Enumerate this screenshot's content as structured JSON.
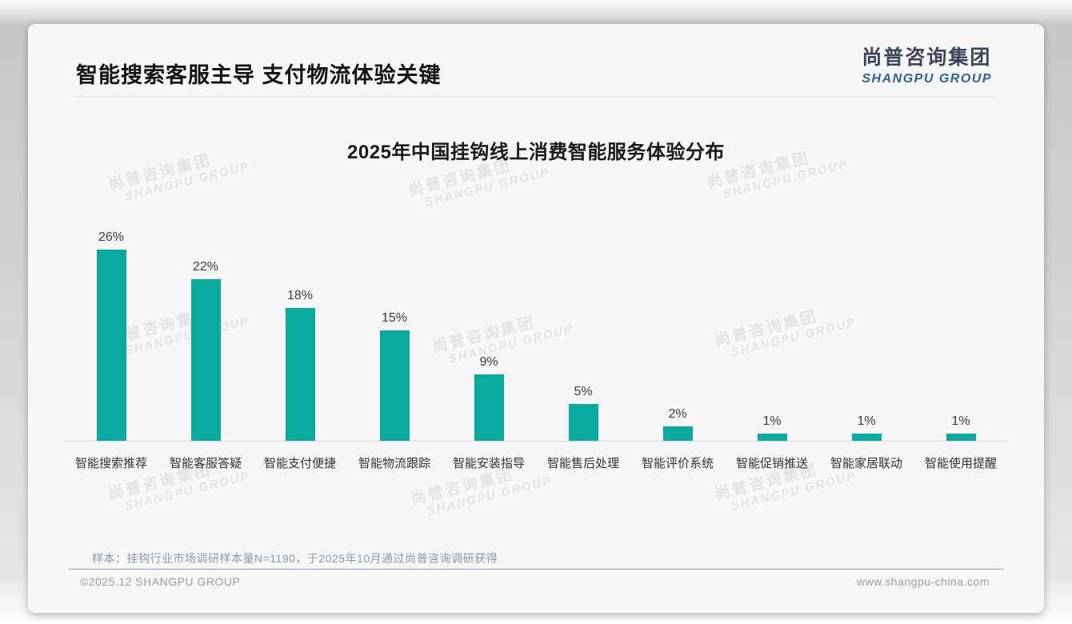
{
  "header": {
    "title": "智能搜索客服主导 支付物流体验关键",
    "logo": {
      "cn": "尚普咨询集团",
      "en": "SHANGPU GROUP"
    }
  },
  "watermark": {
    "line1": "尚普咨询集团",
    "line2": "SHANGPU GROUP"
  },
  "chart_data": {
    "type": "bar",
    "title": "2025年中国挂钩线上消费智能服务体验分布",
    "categories": [
      "智能搜索推荐",
      "智能客服答疑",
      "智能支付便捷",
      "智能物流跟踪",
      "智能安装指导",
      "智能售后处理",
      "智能评价系统",
      "智能促销推送",
      "智能家居联动",
      "智能使用提醒"
    ],
    "values": [
      26,
      22,
      18,
      15,
      9,
      5,
      2,
      1,
      1,
      1
    ],
    "unit": "%",
    "bar_color": "#0aab9f",
    "label_color": "#3d3d3d",
    "ylim": [
      0,
      28
    ],
    "grid": false,
    "legend": false,
    "value_labels": true,
    "xlabel": "",
    "ylabel": ""
  },
  "footnote": "样本：挂钩行业市场调研样本量N=1190，于2025年10月通过尚普咨询调研获得",
  "footer": {
    "copyright": "©2025.12 SHANGPU GROUP",
    "website": "www.shangpu-china.com"
  }
}
